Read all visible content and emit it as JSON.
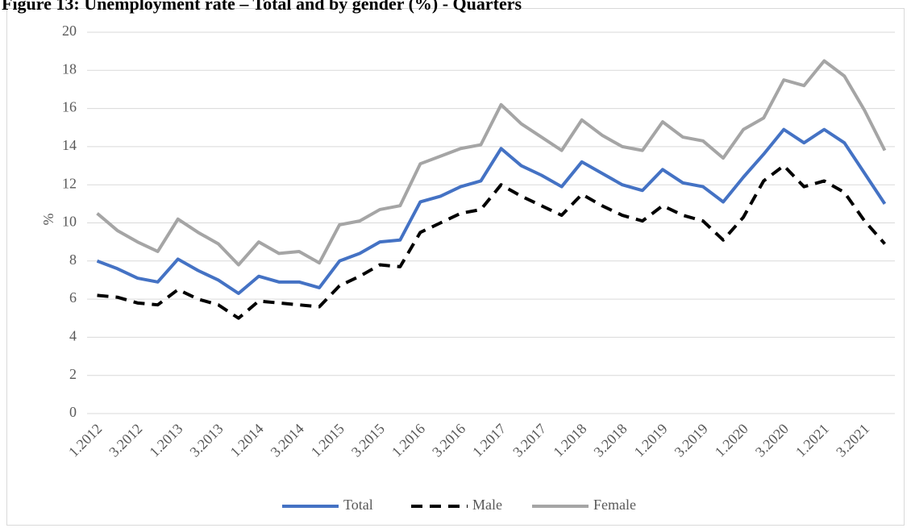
{
  "chart_data": {
    "type": "line",
    "title": "Figure 13: Unemployment rate – Total and by gender (%) - Quarters",
    "y_label": "%",
    "categories": [
      "1.2012",
      null,
      "3.2012",
      null,
      "1.2013",
      null,
      "3.2013",
      null,
      "1.2014",
      null,
      "3.2014",
      null,
      "1.2015",
      null,
      "3.2015",
      null,
      "1.2016",
      null,
      "3.2016",
      null,
      "1.2017",
      null,
      "3.2017",
      null,
      "1.2018",
      null,
      "3.2018",
      null,
      "1.2019",
      null,
      "3.2019",
      null,
      "1.2020",
      null,
      "3.2020",
      null,
      "1.2021",
      null,
      "3.2021",
      null
    ],
    "series": [
      {
        "name": "Total",
        "color": "#4472c4",
        "line_style": "solid",
        "values": [
          8.0,
          7.6,
          7.1,
          6.9,
          8.1,
          7.5,
          7.0,
          6.3,
          7.2,
          6.9,
          6.9,
          6.6,
          8.0,
          8.4,
          9.0,
          9.1,
          11.1,
          11.4,
          11.9,
          12.2,
          13.9,
          13.0,
          12.5,
          11.9,
          13.2,
          12.6,
          12.0,
          11.7,
          12.8,
          12.1,
          11.9,
          11.1,
          12.4,
          13.6,
          14.9,
          14.2,
          14.9,
          14.2,
          12.6,
          11.0
        ]
      },
      {
        "name": "Male",
        "color": "#000000",
        "line_style": "dashed",
        "values": [
          6.2,
          6.1,
          5.8,
          5.7,
          6.5,
          6.0,
          5.7,
          5.0,
          5.9,
          5.8,
          5.7,
          5.6,
          6.7,
          7.2,
          7.8,
          7.7,
          9.5,
          10.0,
          10.5,
          10.7,
          12.0,
          11.4,
          10.9,
          10.4,
          11.5,
          10.9,
          10.4,
          10.1,
          10.9,
          10.4,
          10.1,
          9.1,
          10.3,
          12.2,
          13.0,
          11.9,
          12.2,
          11.6,
          10.1,
          8.9
        ]
      },
      {
        "name": "Female",
        "color": "#a5a5a5",
        "line_style": "solid",
        "values": [
          10.5,
          9.6,
          9.0,
          8.5,
          10.2,
          9.5,
          8.9,
          7.8,
          9.0,
          8.4,
          8.5,
          7.9,
          9.9,
          10.1,
          10.7,
          10.9,
          13.1,
          13.5,
          13.9,
          14.1,
          16.2,
          15.2,
          14.5,
          13.8,
          15.4,
          14.6,
          14.0,
          13.8,
          15.3,
          14.5,
          14.3,
          13.4,
          14.9,
          15.5,
          17.5,
          17.2,
          18.5,
          17.7,
          15.9,
          13.8
        ]
      }
    ],
    "ylim": [
      0,
      20
    ],
    "yticks": [
      0,
      2,
      4,
      6,
      8,
      10,
      12,
      14,
      16,
      18,
      20
    ],
    "grid": true,
    "legend": "bottom"
  }
}
